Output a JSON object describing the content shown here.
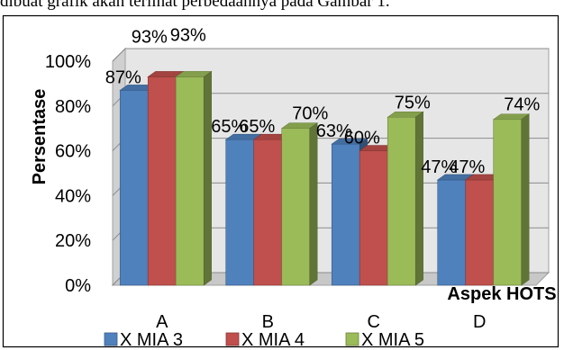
{
  "caption_text": "dibuat grafik akan terlihat perbedaannya pada Gambar 1.",
  "chart_data": {
    "type": "bar",
    "categories": [
      "A",
      "B",
      "C",
      "D"
    ],
    "series": [
      {
        "name": "X MIA 3",
        "values": [
          87,
          65,
          63,
          47
        ],
        "labels": [
          "87%",
          "65%",
          "63%",
          "47%"
        ],
        "color": "#4F81BD"
      },
      {
        "name": "X MIA 4",
        "values": [
          93,
          65,
          60,
          47
        ],
        "labels": [
          "93%",
          "65%",
          "60%",
          "47%"
        ],
        "color": "#C0504D"
      },
      {
        "name": "X MIA 5",
        "values": [
          93,
          70,
          75,
          74
        ],
        "labels": [
          "93%",
          "70%",
          "75%",
          "74%"
        ],
        "color": "#9BBB59"
      }
    ],
    "ylabel": "Persentase",
    "xlabel": "Aspek HOTS",
    "ylim": [
      0,
      100
    ],
    "yticks": [
      "0%",
      "20%",
      "40%",
      "60%",
      "80%",
      "100%"
    ],
    "grid": true,
    "legend_position": "bottom",
    "style": "3d-bar"
  }
}
